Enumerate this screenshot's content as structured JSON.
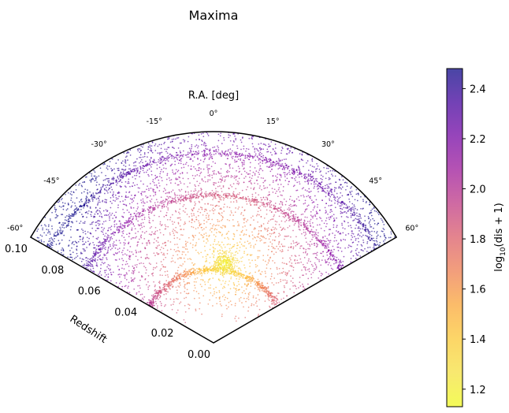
{
  "chart_data": {
    "type": "scatter",
    "title": "Maxima",
    "projection": "polar-wedge",
    "theta_label": "R.A. [deg]",
    "r_label": "Redshift",
    "theta_range_deg": [
      -60,
      60
    ],
    "theta_ticks": [
      -60,
      -45,
      -30,
      -15,
      0,
      15,
      30,
      45,
      60
    ],
    "theta_tick_labels": [
      "-60°",
      "-45°",
      "-30°",
      "-15°",
      "0°",
      "15°",
      "30°",
      "45°",
      "60°"
    ],
    "r_range": [
      0.0,
      0.1
    ],
    "r_ticks": [
      0.0,
      0.02,
      0.04,
      0.06,
      0.08,
      0.1
    ],
    "r_tick_labels": [
      "0.00",
      "0.02",
      "0.04",
      "0.06",
      "0.08",
      "0.10"
    ],
    "colorbar": {
      "label_prefix": "log",
      "label_sub": "10",
      "label_suffix": "(dis + 1)",
      "range": [
        1.13,
        2.48
      ],
      "ticks": [
        1.2,
        1.4,
        1.6,
        1.8,
        2.0,
        2.2,
        2.4
      ],
      "tick_labels": [
        "1.2",
        "1.4",
        "1.6",
        "1.8",
        "2.0",
        "2.2",
        "2.4"
      ],
      "colormap": "plasma_r"
    },
    "overdensity_center": {
      "ra_deg": 8,
      "redshift": 0.038
    },
    "points_estimated": 6000
  }
}
